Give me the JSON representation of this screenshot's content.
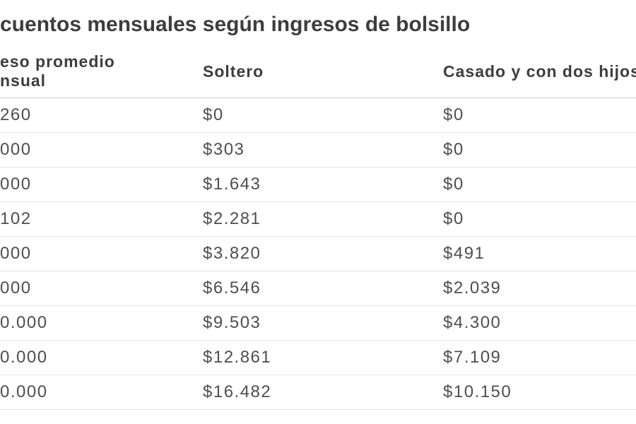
{
  "chart_data": {
    "type": "table",
    "title": "cuentos mensuales según ingresos de bolsillo",
    "columns": [
      {
        "line1": "eso promedio",
        "line2": "nsual"
      },
      {
        "label": "Soltero"
      },
      {
        "label": "Casado y con dos hijos"
      }
    ],
    "rows": [
      [
        "260",
        "$0",
        "$0"
      ],
      [
        "000",
        "$303",
        "$0"
      ],
      [
        "000",
        "$1.643",
        "$0"
      ],
      [
        "102",
        "$2.281",
        "$0"
      ],
      [
        "000",
        "$3.820",
        "$491"
      ],
      [
        "000",
        "$6.546",
        "$2.039"
      ],
      [
        "0.000",
        "$9.503",
        "$4.300"
      ],
      [
        "0.000",
        "$12.861",
        "$7.109"
      ],
      [
        "0.000",
        "$16.482",
        "$10.150"
      ]
    ],
    "layout": {
      "legend": "none",
      "grid": "horizontal-row-separators"
    },
    "colors": {
      "background": "#ffffff",
      "title_text": "#3d3d3d",
      "header_text": "#3d3d3d",
      "value_text": "#4e4e4e",
      "header_border": "#cccccc",
      "row_border": "#e2e2e2"
    }
  }
}
